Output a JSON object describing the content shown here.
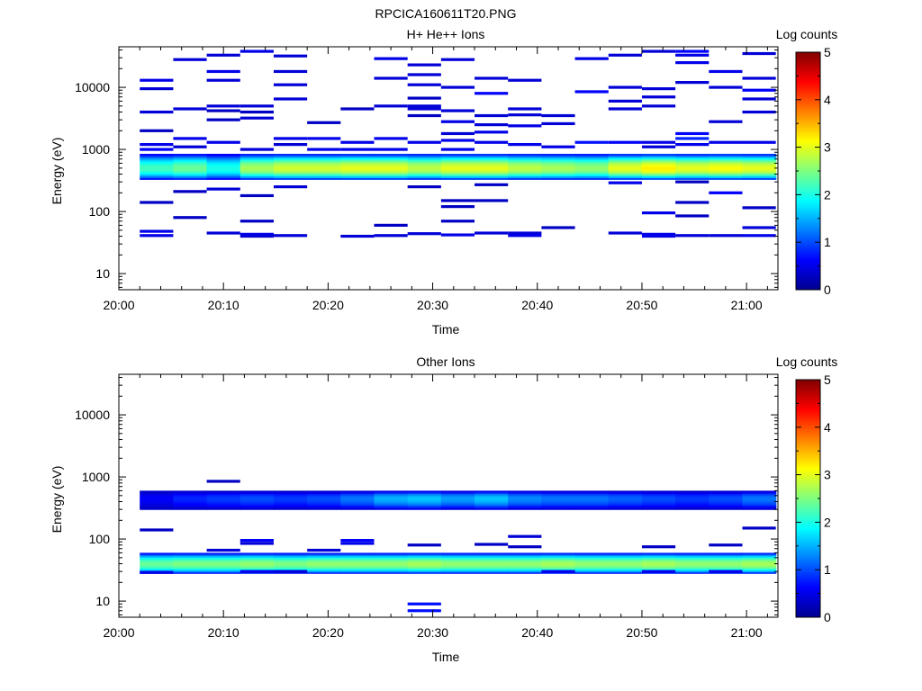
{
  "figure_title": "RPCICA160611T20.PNG",
  "chart_data": [
    {
      "type": "heatmap",
      "title": "H+ He++ Ions",
      "xlabel": "Time",
      "ylabel": "Energy (eV)",
      "x_ticks": [
        "20:00",
        "20:10",
        "20:20",
        "20:30",
        "20:40",
        "20:50",
        "21:00"
      ],
      "x_range_minutes": [
        0,
        63
      ],
      "y_scale": "log",
      "y_ticks": [
        "10",
        "100",
        "1000",
        "10000"
      ],
      "y_range": [
        5.5,
        45000
      ],
      "colorbar": {
        "label": "Log counts",
        "range": [
          0,
          5
        ],
        "ticks": [
          "0",
          "1",
          "2",
          "3",
          "4",
          "5"
        ]
      },
      "columns": 19,
      "grid": false,
      "main_band": {
        "energy_range": [
          330,
          850
        ],
        "peak_energy": 500,
        "peak_log_counts": [
          2.2,
          2.4,
          2.0,
          2.7,
          2.9,
          2.9,
          3.0,
          3.0,
          2.8,
          3.0,
          3.0,
          2.8,
          2.7,
          2.6,
          3.0,
          3.2,
          3.0,
          3.1,
          3.0
        ]
      },
      "cells": [
        [
          0,
          13000,
          0.5
        ],
        [
          0,
          9500,
          0.4
        ],
        [
          0,
          4000,
          0.4
        ],
        [
          0,
          2000,
          0.3
        ],
        [
          0,
          1200,
          0.5
        ],
        [
          0,
          1000,
          0.6
        ],
        [
          0,
          140,
          0.3
        ],
        [
          0,
          48,
          0.5
        ],
        [
          0,
          41,
          0.5
        ],
        [
          1,
          28000,
          0.4
        ],
        [
          1,
          4500,
          0.4
        ],
        [
          1,
          1500,
          0.5
        ],
        [
          1,
          1100,
          0.4
        ],
        [
          1,
          210,
          0.3
        ],
        [
          1,
          80,
          0.3
        ],
        [
          2,
          33000,
          0.4
        ],
        [
          2,
          18000,
          0.5
        ],
        [
          2,
          13000,
          0.4
        ],
        [
          2,
          5000,
          0.4
        ],
        [
          2,
          4200,
          0.3
        ],
        [
          2,
          3000,
          0.3
        ],
        [
          2,
          1300,
          0.5
        ],
        [
          2,
          230,
          0.4
        ],
        [
          2,
          45,
          0.4
        ],
        [
          3,
          38000,
          0.5
        ],
        [
          3,
          5000,
          0.4
        ],
        [
          3,
          4000,
          0.3
        ],
        [
          3,
          3200,
          0.4
        ],
        [
          3,
          1000,
          0.4
        ],
        [
          3,
          180,
          0.3
        ],
        [
          3,
          70,
          0.3
        ],
        [
          3,
          43,
          0.5
        ],
        [
          3,
          40,
          0.4
        ],
        [
          4,
          32000,
          0.4
        ],
        [
          4,
          18000,
          0.4
        ],
        [
          4,
          11000,
          0.4
        ],
        [
          4,
          6500,
          0.4
        ],
        [
          4,
          1500,
          0.5
        ],
        [
          4,
          1200,
          0.4
        ],
        [
          4,
          250,
          0.4
        ],
        [
          4,
          41,
          0.4
        ],
        [
          5,
          2700,
          0.3
        ],
        [
          5,
          1500,
          0.5
        ],
        [
          5,
          1000,
          0.5
        ],
        [
          6,
          4500,
          0.3
        ],
        [
          6,
          1300,
          0.5
        ],
        [
          6,
          1000,
          0.5
        ],
        [
          6,
          40,
          0.4
        ],
        [
          7,
          29000,
          0.5
        ],
        [
          7,
          14000,
          0.4
        ],
        [
          7,
          5000,
          0.4
        ],
        [
          7,
          1500,
          0.5
        ],
        [
          7,
          1000,
          0.5
        ],
        [
          7,
          60,
          0.3
        ],
        [
          7,
          41,
          0.4
        ],
        [
          8,
          23000,
          0.4
        ],
        [
          8,
          16000,
          0.4
        ],
        [
          8,
          11000,
          0.4
        ],
        [
          8,
          6700,
          0.3
        ],
        [
          8,
          5000,
          0.4
        ],
        [
          8,
          4500,
          0.4
        ],
        [
          8,
          3500,
          0.3
        ],
        [
          8,
          1300,
          0.5
        ],
        [
          8,
          250,
          0.3
        ],
        [
          8,
          44,
          0.4
        ],
        [
          9,
          28000,
          0.4
        ],
        [
          9,
          10000,
          0.4
        ],
        [
          9,
          4200,
          0.4
        ],
        [
          9,
          2800,
          0.5
        ],
        [
          9,
          1800,
          0.4
        ],
        [
          9,
          1400,
          0.5
        ],
        [
          9,
          1000,
          0.5
        ],
        [
          9,
          150,
          0.3
        ],
        [
          9,
          120,
          0.3
        ],
        [
          9,
          70,
          0.3
        ],
        [
          9,
          42,
          0.5
        ],
        [
          10,
          14000,
          0.4
        ],
        [
          10,
          8000,
          0.6
        ],
        [
          10,
          3500,
          0.4
        ],
        [
          10,
          2500,
          0.4
        ],
        [
          10,
          1900,
          0.5
        ],
        [
          10,
          1300,
          0.5
        ],
        [
          10,
          270,
          0.3
        ],
        [
          10,
          150,
          0.3
        ],
        [
          10,
          45,
          0.4
        ],
        [
          11,
          13000,
          0.4
        ],
        [
          11,
          4500,
          0.4
        ],
        [
          11,
          3600,
          0.4
        ],
        [
          11,
          2400,
          0.5
        ],
        [
          11,
          1200,
          0.5
        ],
        [
          11,
          45,
          0.4
        ],
        [
          11,
          41,
          0.5
        ],
        [
          12,
          3500,
          0.4
        ],
        [
          12,
          2600,
          0.4
        ],
        [
          12,
          1100,
          0.5
        ],
        [
          12,
          55,
          0.3
        ],
        [
          13,
          29000,
          0.5
        ],
        [
          13,
          8500,
          0.6
        ],
        [
          13,
          1300,
          0.7
        ],
        [
          14,
          33000,
          0.4
        ],
        [
          14,
          10000,
          0.4
        ],
        [
          14,
          6000,
          0.4
        ],
        [
          14,
          4500,
          0.4
        ],
        [
          14,
          1300,
          0.6
        ],
        [
          14,
          290,
          0.5
        ],
        [
          14,
          45,
          0.4
        ],
        [
          15,
          38000,
          0.4
        ],
        [
          15,
          9500,
          0.4
        ],
        [
          15,
          7000,
          0.4
        ],
        [
          15,
          5000,
          0.4
        ],
        [
          15,
          1300,
          0.5
        ],
        [
          15,
          1100,
          0.4
        ],
        [
          15,
          95,
          0.5
        ],
        [
          15,
          43,
          0.5
        ],
        [
          15,
          40,
          0.5
        ],
        [
          16,
          38000,
          0.6
        ],
        [
          16,
          33000,
          0.5
        ],
        [
          16,
          25000,
          0.5
        ],
        [
          16,
          12000,
          0.4
        ],
        [
          16,
          1800,
          0.6
        ],
        [
          16,
          1500,
          0.8
        ],
        [
          16,
          1200,
          0.5
        ],
        [
          16,
          300,
          0.3
        ],
        [
          16,
          140,
          0.3
        ],
        [
          16,
          85,
          0.3
        ],
        [
          16,
          41,
          0.4
        ],
        [
          17,
          18000,
          0.5
        ],
        [
          17,
          10000,
          0.4
        ],
        [
          17,
          2800,
          0.4
        ],
        [
          17,
          1300,
          0.5
        ],
        [
          17,
          200,
          0.6
        ],
        [
          17,
          41,
          0.4
        ],
        [
          18,
          35000,
          0.4
        ],
        [
          18,
          14000,
          0.4
        ],
        [
          18,
          9000,
          0.6
        ],
        [
          18,
          6500,
          0.4
        ],
        [
          18,
          4000,
          0.4
        ],
        [
          18,
          1300,
          0.5
        ],
        [
          18,
          115,
          0.3
        ],
        [
          18,
          55,
          0.4
        ],
        [
          18,
          41,
          0.5
        ]
      ]
    },
    {
      "type": "heatmap",
      "title": "Other Ions",
      "xlabel": "Time",
      "ylabel": "Energy (eV)",
      "x_ticks": [
        "20:00",
        "20:10",
        "20:20",
        "20:30",
        "20:40",
        "20:50",
        "21:00"
      ],
      "x_range_minutes": [
        0,
        63
      ],
      "y_scale": "log",
      "y_ticks": [
        "10",
        "100",
        "1000",
        "10000"
      ],
      "y_range": [
        5.5,
        45000
      ],
      "colorbar": {
        "label": "Log counts",
        "range": [
          0,
          5
        ],
        "ticks": [
          "0",
          "1",
          "2",
          "3",
          "4",
          "5"
        ]
      },
      "columns": 19,
      "grid": false,
      "bands": [
        {
          "energy_range": [
            300,
            600
          ],
          "peak_energy": 460,
          "peak_log_counts": [
            0.6,
            0.8,
            0.9,
            1.0,
            0.9,
            1.0,
            1.2,
            1.5,
            1.6,
            1.4,
            1.6,
            1.3,
            1.2,
            1.2,
            1.1,
            1.0,
            0.9,
            1.0,
            1.2
          ]
        },
        {
          "energy_range": [
            28,
            60
          ],
          "peak_energy": 40,
          "peak_log_counts": [
            2.4,
            2.5,
            2.5,
            2.6,
            2.5,
            2.6,
            2.6,
            2.6,
            2.7,
            2.6,
            2.6,
            2.6,
            2.7,
            2.6,
            2.6,
            2.7,
            2.6,
            2.6,
            2.7
          ]
        }
      ],
      "cells": [
        [
          0,
          140,
          0.3
        ],
        [
          0,
          29,
          0.5
        ],
        [
          2,
          850,
          0.3
        ],
        [
          2,
          66,
          0.4
        ],
        [
          3,
          95,
          0.6
        ],
        [
          3,
          85,
          0.4
        ],
        [
          3,
          30,
          0.5
        ],
        [
          4,
          30,
          0.4
        ],
        [
          5,
          66,
          0.4
        ],
        [
          6,
          95,
          0.6
        ],
        [
          6,
          85,
          0.5
        ],
        [
          8,
          80,
          0.3
        ],
        [
          8,
          9,
          0.7
        ],
        [
          8,
          7,
          0.7
        ],
        [
          10,
          82,
          0.3
        ],
        [
          11,
          110,
          0.4
        ],
        [
          11,
          75,
          0.3
        ],
        [
          12,
          30,
          0.5
        ],
        [
          15,
          75,
          0.3
        ],
        [
          15,
          30,
          0.5
        ],
        [
          17,
          80,
          0.3
        ],
        [
          17,
          30,
          0.5
        ],
        [
          18,
          150,
          0.3
        ]
      ]
    }
  ]
}
